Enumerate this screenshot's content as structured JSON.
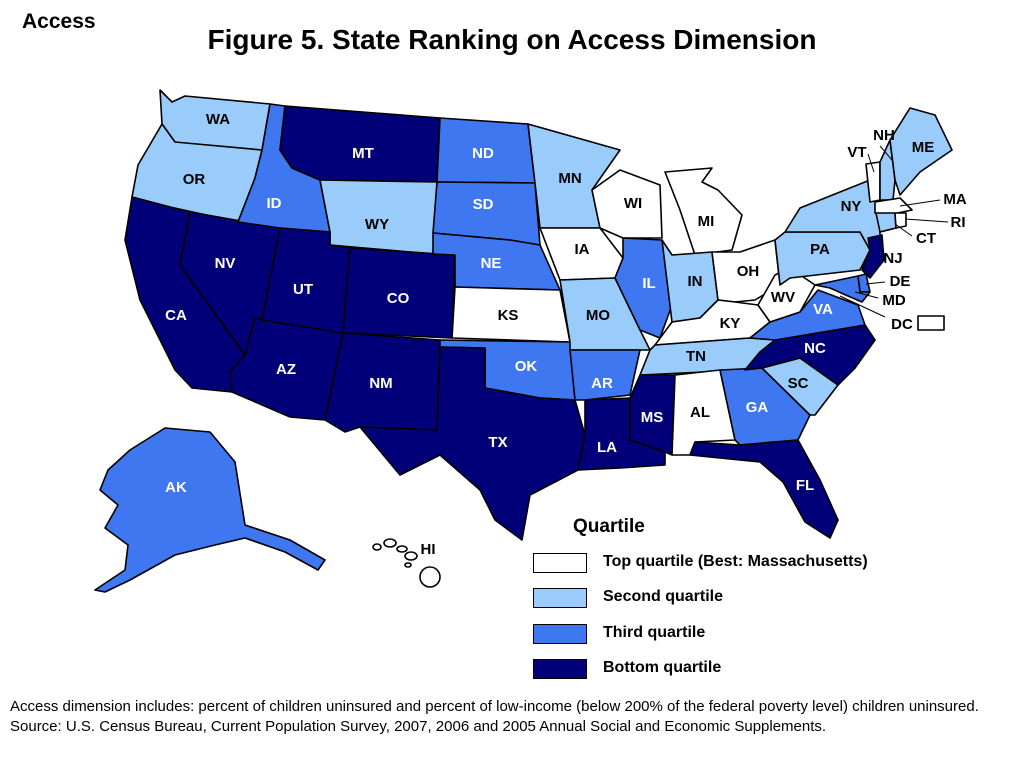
{
  "header": {
    "corner_label": "Access",
    "title": "Figure 5. State Ranking on Access Dimension"
  },
  "colors": {
    "top": "#ffffff",
    "second": "#99ccfa",
    "third": "#3f77f0",
    "bottom": "#010078"
  },
  "states": {
    "WA": {
      "label": "WA",
      "quartile": "second"
    },
    "OR": {
      "label": "OR",
      "quartile": "second"
    },
    "CA": {
      "label": "CA",
      "quartile": "bottom"
    },
    "NV": {
      "label": "NV",
      "quartile": "bottom"
    },
    "ID": {
      "label": "ID",
      "quartile": "third"
    },
    "MT": {
      "label": "MT",
      "quartile": "bottom"
    },
    "WY": {
      "label": "WY",
      "quartile": "second"
    },
    "UT": {
      "label": "UT",
      "quartile": "bottom"
    },
    "AZ": {
      "label": "AZ",
      "quartile": "bottom"
    },
    "CO": {
      "label": "CO",
      "quartile": "bottom"
    },
    "NM": {
      "label": "NM",
      "quartile": "bottom"
    },
    "ND": {
      "label": "ND",
      "quartile": "third"
    },
    "SD": {
      "label": "SD",
      "quartile": "third"
    },
    "NE": {
      "label": "NE",
      "quartile": "third"
    },
    "KS": {
      "label": "KS",
      "quartile": "top"
    },
    "OK": {
      "label": "OK",
      "quartile": "third"
    },
    "TX": {
      "label": "TX",
      "quartile": "bottom"
    },
    "MN": {
      "label": "MN",
      "quartile": "second"
    },
    "IA": {
      "label": "IA",
      "quartile": "top"
    },
    "MO": {
      "label": "MO",
      "quartile": "second"
    },
    "AR": {
      "label": "AR",
      "quartile": "third"
    },
    "LA": {
      "label": "LA",
      "quartile": "bottom"
    },
    "WI": {
      "label": "WI",
      "quartile": "top"
    },
    "IL": {
      "label": "IL",
      "quartile": "third"
    },
    "MI": {
      "label": "MI",
      "quartile": "top"
    },
    "IN": {
      "label": "IN",
      "quartile": "second"
    },
    "OH": {
      "label": "OH",
      "quartile": "top"
    },
    "KY": {
      "label": "KY",
      "quartile": "top"
    },
    "TN": {
      "label": "TN",
      "quartile": "second"
    },
    "MS": {
      "label": "MS",
      "quartile": "bottom"
    },
    "AL": {
      "label": "AL",
      "quartile": "top"
    },
    "GA": {
      "label": "GA",
      "quartile": "third"
    },
    "FL": {
      "label": "FL",
      "quartile": "bottom"
    },
    "SC": {
      "label": "SC",
      "quartile": "second"
    },
    "NC": {
      "label": "NC",
      "quartile": "bottom"
    },
    "VA": {
      "label": "VA",
      "quartile": "third"
    },
    "WV": {
      "label": "WV",
      "quartile": "top"
    },
    "PA": {
      "label": "PA",
      "quartile": "second"
    },
    "NY": {
      "label": "NY",
      "quartile": "second"
    },
    "VT": {
      "label": "VT",
      "quartile": "top"
    },
    "NH": {
      "label": "NH",
      "quartile": "second"
    },
    "ME": {
      "label": "ME",
      "quartile": "second"
    },
    "MA": {
      "label": "MA",
      "quartile": "top"
    },
    "RI": {
      "label": "RI",
      "quartile": "top"
    },
    "CT": {
      "label": "CT",
      "quartile": "second"
    },
    "NJ": {
      "label": "NJ",
      "quartile": "bottom"
    },
    "DE": {
      "label": "DE",
      "quartile": "third"
    },
    "MD": {
      "label": "MD",
      "quartile": "third"
    },
    "DC": {
      "label": "DC",
      "quartile": "top"
    },
    "AK": {
      "label": "AK",
      "quartile": "third"
    },
    "HI": {
      "label": "HI",
      "quartile": "top"
    }
  },
  "legend": {
    "title": "Quartile",
    "items": [
      {
        "key": "top",
        "label": "Top quartile (Best: Massachusetts)"
      },
      {
        "key": "second",
        "label": "Second quartile"
      },
      {
        "key": "third",
        "label": "Third quartile"
      },
      {
        "key": "bottom",
        "label": "Bottom quartile"
      }
    ]
  },
  "notes": {
    "definition": "Access dimension includes: percent of children uninsured and percent of low-income (below 200% of the federal poverty level) children uninsured.",
    "source": "Source: U.S. Census Bureau, Current Population Survey, 2007, 2006 and 2005 Annual Social and Economic Supplements."
  }
}
